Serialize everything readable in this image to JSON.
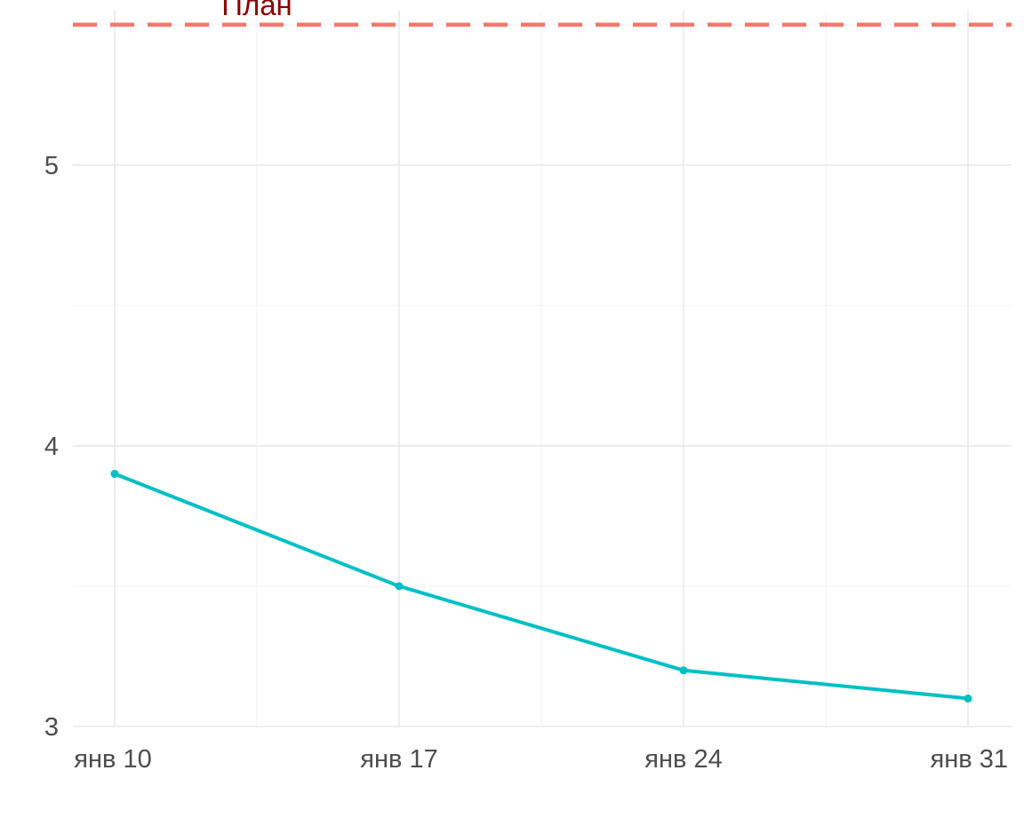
{
  "chart_data": {
    "type": "line",
    "x": [
      "янв 10",
      "янв 17",
      "янв 24",
      "янв 31"
    ],
    "y_ticks": [
      3,
      4,
      5
    ],
    "ylim": [
      3,
      5.55
    ],
    "grid": true,
    "series": [
      {
        "values": [
          3.9,
          3.5,
          3.2,
          3.1
        ],
        "color": "#00bfc4"
      }
    ],
    "reference_line": {
      "label": "План",
      "value": 5.5,
      "style": "dashed",
      "line_color": "#f8766d",
      "label_color": "#8b0000"
    }
  }
}
